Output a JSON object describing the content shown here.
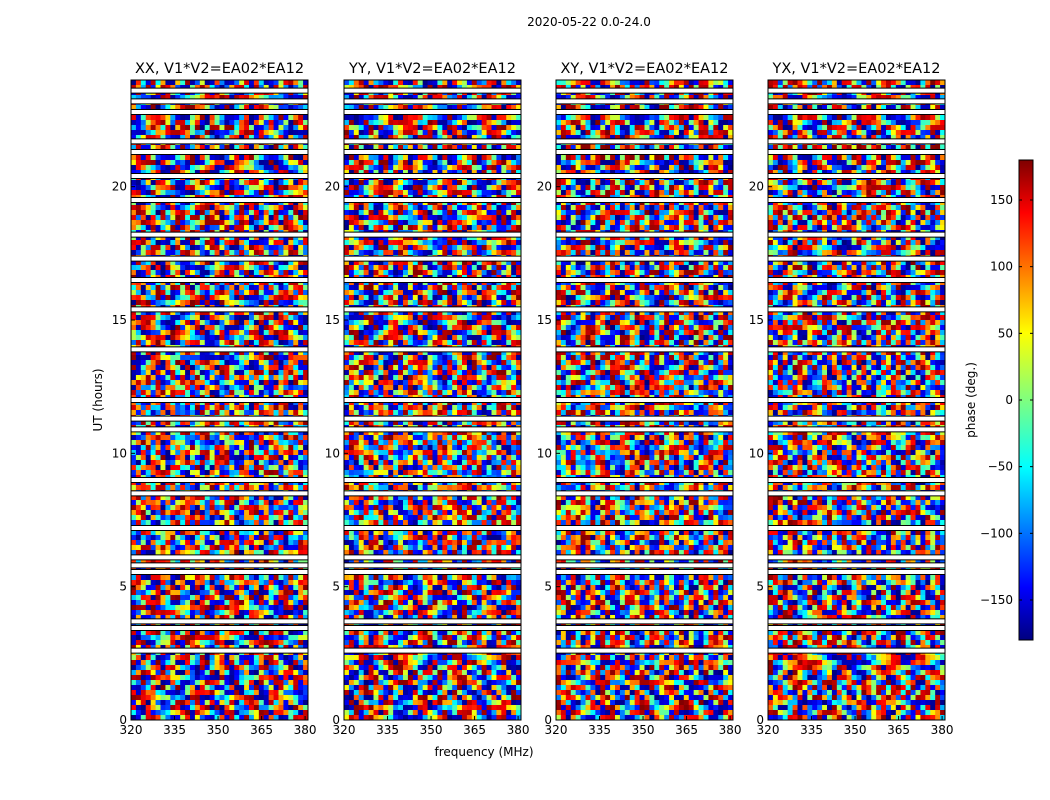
{
  "chart_data": {
    "type": "heatmap",
    "suptitle": "2020-05-22 0.0-24.0",
    "xlabel": "frequency (MHz)",
    "ylabel": "UT (hours)",
    "xlim": [
      320,
      381
    ],
    "ylim": [
      0,
      24
    ],
    "xticks": [
      320,
      335,
      350,
      365,
      380
    ],
    "yticks": [
      0,
      5,
      10,
      15,
      20
    ],
    "panels": [
      {
        "title": "XX, V1*V2=EA02*EA12"
      },
      {
        "title": "YY, V1*V2=EA02*EA12"
      },
      {
        "title": "XY, V1*V2=EA02*EA12"
      },
      {
        "title": "YX, V1*V2=EA02*EA12"
      }
    ],
    "colorbar": {
      "label": "phase (deg.)",
      "range": [
        -180,
        180
      ],
      "ticks": [
        150,
        100,
        50,
        0,
        -50,
        -100,
        -150
      ],
      "tick_labels": [
        "150",
        "100",
        "50",
        "0",
        "−50",
        "−100",
        "−150"
      ],
      "colormap": "jet",
      "colors": [
        "#00007f",
        "#0000ff",
        "#00ffff",
        "#7fff7f",
        "#ffff00",
        "#ff0000",
        "#7f0000"
      ]
    },
    "blank_rows_hours": [
      2.6,
      3.45,
      3.7,
      5.55,
      5.8,
      6.1,
      7.2,
      8.5,
      9.0,
      10.9,
      11.3,
      12.0,
      13.9,
      15.4,
      16.5,
      17.3,
      18.2,
      19.5,
      20.4,
      21.3,
      21.7,
      22.8,
      23.2,
      23.6
    ]
  }
}
